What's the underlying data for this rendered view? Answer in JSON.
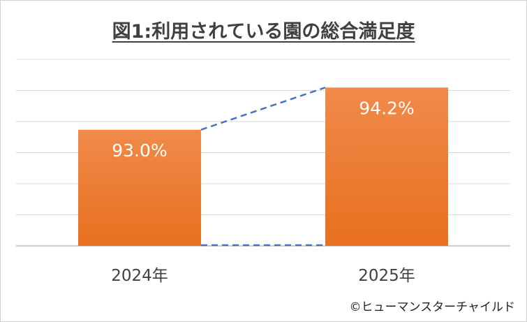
{
  "chart_data": {
    "type": "bar",
    "title": "図1:利用されている園の総合満足度",
    "categories": [
      "2024年",
      "2025年"
    ],
    "values": [
      93.0,
      94.2
    ],
    "data_labels": [
      "93.0%",
      "94.2%"
    ],
    "ylim": [
      89.7,
      95.0
    ],
    "grid": true,
    "connector_lines": "dashed",
    "colors": {
      "bar_top": "#f08a4a",
      "bar_bottom": "#e8701f",
      "connector": "#4472c4",
      "grid": "#d9d9d9"
    }
  },
  "credit": "©ヒューマンスターチャイルド"
}
